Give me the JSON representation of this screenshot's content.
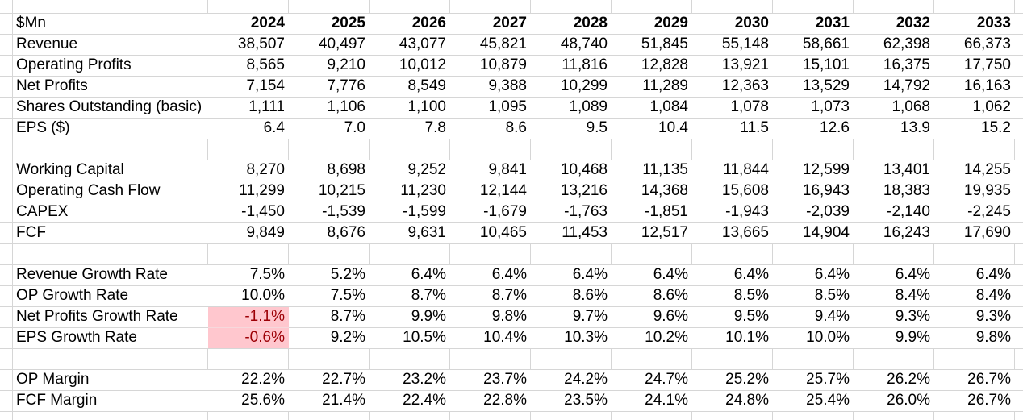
{
  "sheet": {
    "unit_label": "$Mn",
    "years": [
      "2024",
      "2025",
      "2026",
      "2027",
      "2028",
      "2029",
      "2030",
      "2031",
      "2032",
      "2033"
    ],
    "rows": [
      {
        "kind": "data",
        "label": "Revenue",
        "values": [
          "38,507",
          "40,497",
          "43,077",
          "45,821",
          "48,740",
          "51,845",
          "55,148",
          "58,661",
          "62,398",
          "66,373"
        ]
      },
      {
        "kind": "data",
        "label": "Operating Profits",
        "values": [
          "8,565",
          "9,210",
          "10,012",
          "10,879",
          "11,816",
          "12,828",
          "13,921",
          "15,101",
          "16,375",
          "17,750"
        ]
      },
      {
        "kind": "data",
        "label": "Net Profits",
        "values": [
          "7,154",
          "7,776",
          "8,549",
          "9,388",
          "10,299",
          "11,289",
          "12,363",
          "13,529",
          "14,792",
          "16,163"
        ]
      },
      {
        "kind": "data",
        "label": "Shares Outstanding (basic)",
        "values": [
          "1,111",
          "1,106",
          "1,100",
          "1,095",
          "1,089",
          "1,084",
          "1,078",
          "1,073",
          "1,068",
          "1,062"
        ]
      },
      {
        "kind": "data",
        "label": "EPS ($)",
        "values": [
          "6.4",
          "7.0",
          "7.8",
          "8.6",
          "9.5",
          "10.4",
          "11.5",
          "12.6",
          "13.9",
          "15.2"
        ]
      },
      {
        "kind": "spacer"
      },
      {
        "kind": "data",
        "label": "Working Capital",
        "values": [
          "8,270",
          "8,698",
          "9,252",
          "9,841",
          "10,468",
          "11,135",
          "11,844",
          "12,599",
          "13,401",
          "14,255"
        ]
      },
      {
        "kind": "data",
        "label": "Operating Cash Flow",
        "values": [
          "11,299",
          "10,215",
          "11,230",
          "12,144",
          "13,216",
          "14,368",
          "15,608",
          "16,943",
          "18,383",
          "19,935"
        ]
      },
      {
        "kind": "data",
        "label": "CAPEX",
        "values": [
          "-1,450",
          "-1,539",
          "-1,599",
          "-1,679",
          "-1,763",
          "-1,851",
          "-1,943",
          "-2,039",
          "-2,140",
          "-2,245"
        ]
      },
      {
        "kind": "data",
        "label": "FCF",
        "values": [
          "9,849",
          "8,676",
          "9,631",
          "10,465",
          "11,453",
          "12,517",
          "13,665",
          "14,904",
          "16,243",
          "17,690"
        ]
      },
      {
        "kind": "spacer"
      },
      {
        "kind": "data",
        "label": "Revenue Growth Rate",
        "values": [
          "7.5%",
          "5.2%",
          "6.4%",
          "6.4%",
          "6.4%",
          "6.4%",
          "6.4%",
          "6.4%",
          "6.4%",
          "6.4%"
        ]
      },
      {
        "kind": "data",
        "label": "OP Growth Rate",
        "values": [
          "10.0%",
          "7.5%",
          "8.7%",
          "8.7%",
          "8.6%",
          "8.6%",
          "8.5%",
          "8.5%",
          "8.4%",
          "8.4%"
        ]
      },
      {
        "kind": "data",
        "label": "Net Profits Growth Rate",
        "values": [
          "-1.1%",
          "8.7%",
          "9.9%",
          "9.8%",
          "9.7%",
          "9.6%",
          "9.5%",
          "9.4%",
          "9.3%",
          "9.3%"
        ],
        "highlight_cols": [
          0
        ]
      },
      {
        "kind": "data",
        "label": "EPS Growth Rate",
        "values": [
          "-0.6%",
          "9.2%",
          "10.5%",
          "10.4%",
          "10.3%",
          "10.2%",
          "10.1%",
          "10.0%",
          "9.9%",
          "9.8%"
        ],
        "highlight_cols": [
          0
        ]
      },
      {
        "kind": "spacer"
      },
      {
        "kind": "data",
        "label": "OP Margin",
        "values": [
          "22.2%",
          "22.7%",
          "23.2%",
          "23.7%",
          "24.2%",
          "24.7%",
          "25.2%",
          "25.7%",
          "26.2%",
          "26.7%"
        ]
      },
      {
        "kind": "data",
        "label": "FCF Margin",
        "values": [
          "25.6%",
          "21.4%",
          "22.4%",
          "22.8%",
          "23.5%",
          "24.1%",
          "24.8%",
          "25.4%",
          "26.0%",
          "26.7%"
        ]
      }
    ],
    "colors": {
      "gridline": "#D6D6D6",
      "negative_cell_background": "#FFC7CE",
      "negative_cell_text": "#9C0006",
      "text": "#000000",
      "background": "#FFFFFF"
    }
  }
}
